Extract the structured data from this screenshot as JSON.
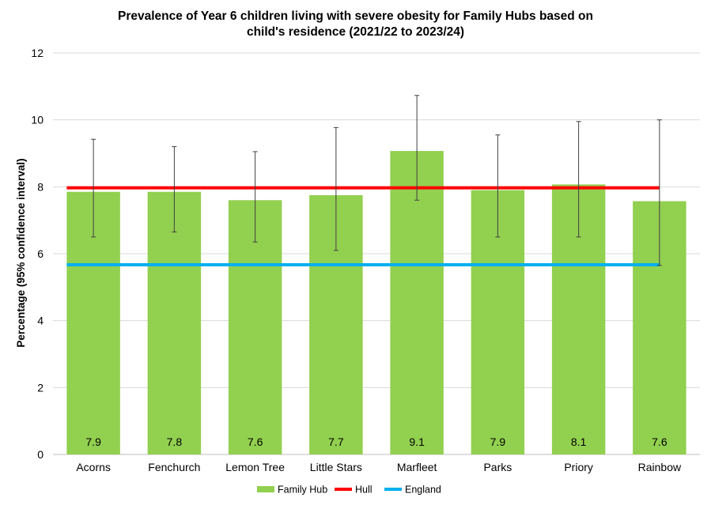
{
  "chart_data": {
    "type": "bar",
    "title_lines": [
      "Prevalence of Year 6 children living with severe obesity for Family Hubs based on",
      "child's residence (2021/22 to 2023/24)"
    ],
    "xlabel": "",
    "ylabel": "Percentage (95% confidence interval)",
    "ylim": [
      0,
      12
    ],
    "yticks": [
      0,
      2,
      4,
      6,
      8,
      10,
      12
    ],
    "grid": true,
    "categories": [
      "Acorns",
      "Fenchurch",
      "Lemon Tree",
      "Little Stars",
      "Marfleet",
      "Parks",
      "Priory",
      "Rainbow"
    ],
    "series": [
      {
        "name": "Family Hub",
        "type": "bar",
        "color": "#92d050",
        "values": [
          7.85,
          7.85,
          7.6,
          7.75,
          9.07,
          7.9,
          8.07,
          7.57
        ],
        "labels": [
          "7.9",
          "7.8",
          "7.6",
          "7.7",
          "9.1",
          "7.9",
          "8.1",
          "7.6"
        ],
        "ci_lower": [
          6.5,
          6.65,
          6.35,
          6.1,
          7.6,
          6.5,
          6.5,
          5.65
        ],
        "ci_upper": [
          9.42,
          9.2,
          9.05,
          9.77,
          10.73,
          9.55,
          9.95,
          10.0
        ]
      },
      {
        "name": "Hull",
        "type": "line",
        "color": "#ff0000",
        "value": 7.97
      },
      {
        "name": "England",
        "type": "line",
        "color": "#00b0f0",
        "value": 5.67
      }
    ],
    "legend_position": "bottom-center"
  }
}
